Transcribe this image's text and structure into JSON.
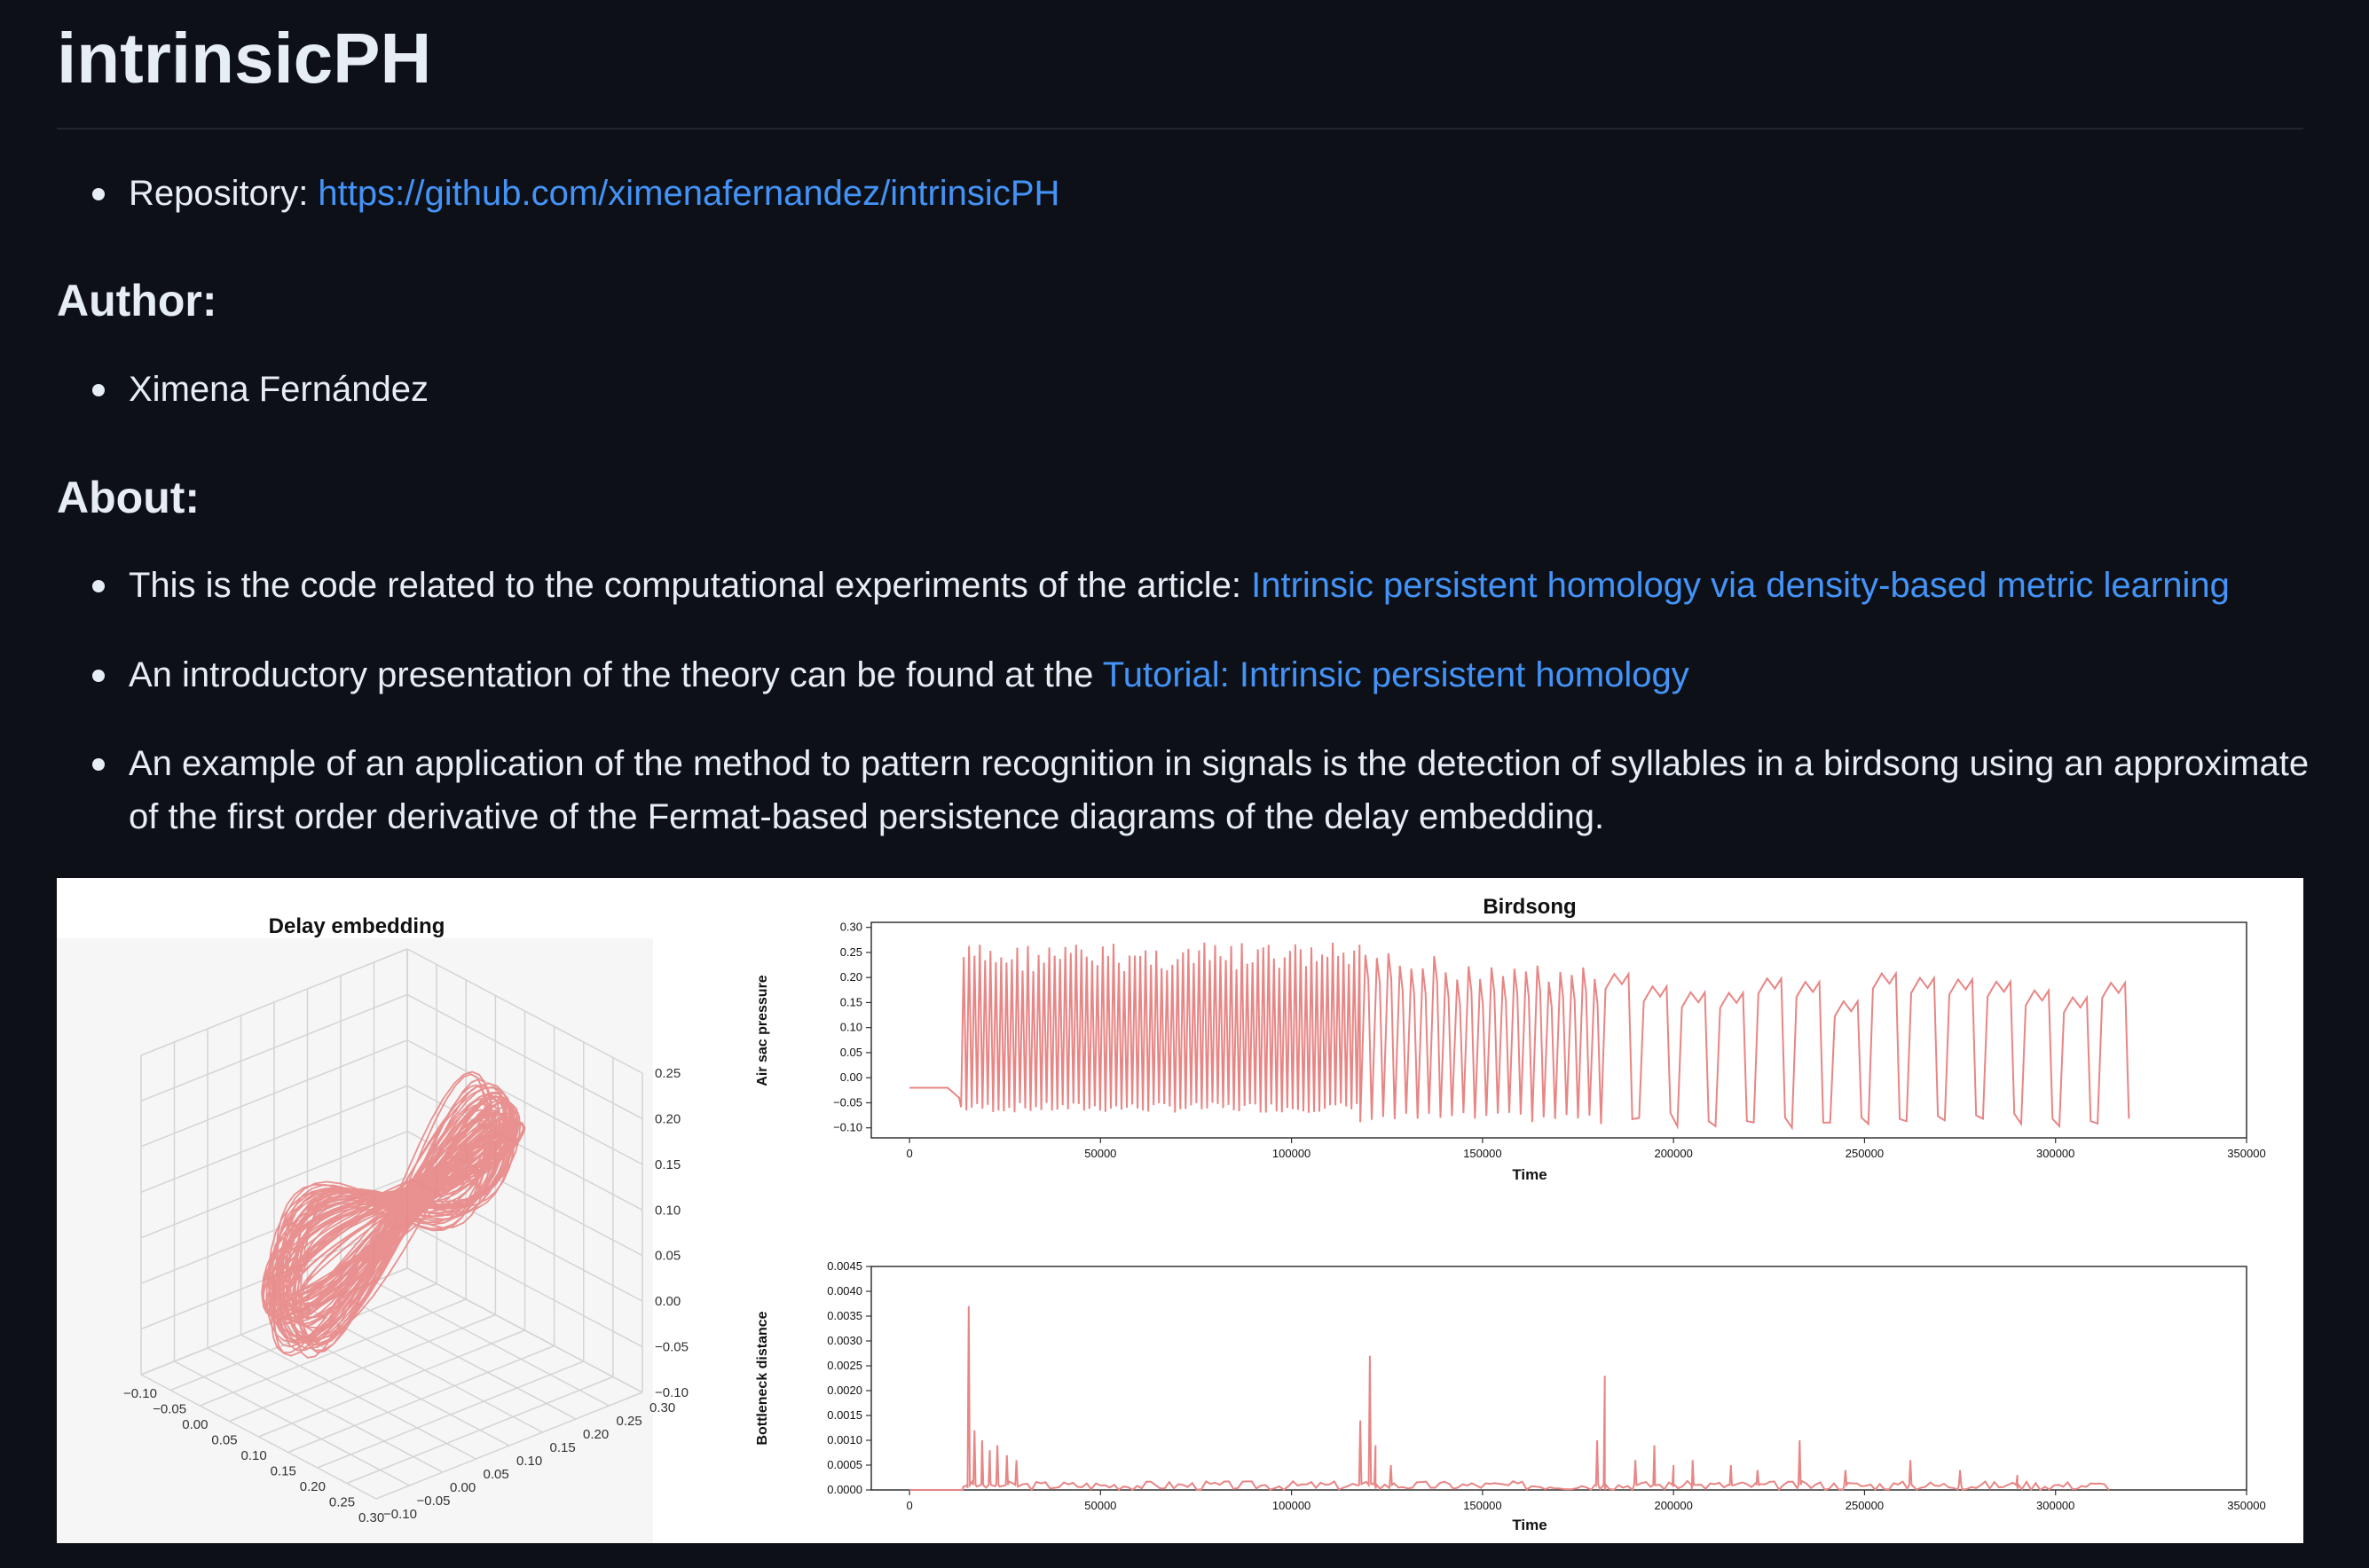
{
  "title": "intrinsicPH",
  "repository": {
    "label": "Repository: ",
    "link": "https://github.com/ximenafernandez/intrinsicPH"
  },
  "author": {
    "heading": "Author:",
    "name": "Ximena Fernández"
  },
  "about": {
    "heading": "About:",
    "item1_text": "This is the code related to the computational experiments of the article: ",
    "item1_link": "Intrinsic persistent homology via density-based metric learning",
    "item2_text": "An introductory presentation of the theory can be found at the ",
    "item2_link": "Tutorial: Intrinsic persistent homology",
    "item3_line1": "An example of an application of the method to pattern recognition in signals is the detection of syllables in a birdsong using an approximate",
    "item3_line2": "of the first order derivative of the Fermat-based persistence diagrams of the delay embedding."
  },
  "colors": {
    "background": "#0d1117",
    "text": "#e6edf3",
    "link": "#4493f8",
    "series": "#e88585"
  },
  "chart_data": [
    {
      "type": "line3d",
      "title": "Delay embedding",
      "axes": {
        "x_ticks": [
          "−0.10",
          "−0.05",
          "0.00",
          "0.05",
          "0.10",
          "0.15",
          "0.20",
          "0.25",
          "0.30"
        ],
        "y_ticks": [
          "−0.10",
          "−0.05",
          "0.00",
          "0.05",
          "0.10",
          "0.15",
          "0.20",
          "0.25",
          "0.30"
        ],
        "z_ticks": [
          "−0.10",
          "−0.05",
          "0.00",
          "0.05",
          "0.10",
          "0.15",
          "0.20",
          "0.25"
        ]
      }
    },
    {
      "type": "line",
      "title": "Birdsong",
      "xlabel": "Time",
      "ylabel": "Air sac pressure",
      "xlim": [
        -10000,
        350000
      ],
      "ylim": [
        -0.12,
        0.31
      ],
      "x_ticks": [
        0,
        50000,
        100000,
        150000,
        200000,
        250000,
        300000,
        350000
      ],
      "y_ticks": [
        "0.30",
        "0.25",
        "0.20",
        "0.15",
        "0.10",
        "0.05",
        "0.00",
        "−0.05",
        "−0.10"
      ],
      "y_tick_values": [
        0.3,
        0.25,
        0.2,
        0.15,
        0.1,
        0.05,
        0.0,
        -0.05,
        -0.1
      ],
      "segments": [
        {
          "x_start": 0,
          "x_end": 13000,
          "kind": "flat",
          "level": -0.02
        },
        {
          "x_start": 13500,
          "x_end": 118000,
          "kind": "fast",
          "period": 1400,
          "low": -0.07,
          "high": 0.27
        },
        {
          "x_start": 118000,
          "x_end": 181000,
          "kind": "medium",
          "period": 3000,
          "low": -0.09,
          "high": 0.25
        },
        {
          "x_start": 181000,
          "x_end": 314000,
          "kind": "slow",
          "period": 10000,
          "low": -0.1,
          "high": 0.21
        }
      ]
    },
    {
      "type": "line",
      "xlabel": "Time",
      "ylabel": "Bottleneck distance",
      "xlim": [
        -10000,
        350000
      ],
      "ylim": [
        0,
        0.0045
      ],
      "x_ticks": [
        0,
        50000,
        100000,
        150000,
        200000,
        250000,
        300000,
        350000
      ],
      "y_ticks": [
        "0.0045",
        "0.0040",
        "0.0035",
        "0.0030",
        "0.0025",
        "0.0020",
        "0.0015",
        "0.0010",
        "0.0005",
        "0.0000"
      ],
      "y_tick_values": [
        0.0045,
        0.004,
        0.0035,
        0.003,
        0.0025,
        0.002,
        0.0015,
        0.001,
        0.0005,
        0.0
      ],
      "peaks": [
        {
          "x": 15500,
          "y": 0.0037
        },
        {
          "x": 17000,
          "y": 0.0012
        },
        {
          "x": 19000,
          "y": 0.001
        },
        {
          "x": 21000,
          "y": 0.0008
        },
        {
          "x": 23000,
          "y": 0.0009
        },
        {
          "x": 25500,
          "y": 0.0007
        },
        {
          "x": 28000,
          "y": 0.0006
        },
        {
          "x": 118000,
          "y": 0.0014
        },
        {
          "x": 120500,
          "y": 0.0027
        },
        {
          "x": 122000,
          "y": 0.0009
        },
        {
          "x": 126000,
          "y": 0.0005
        },
        {
          "x": 180000,
          "y": 0.001
        },
        {
          "x": 182000,
          "y": 0.0023
        },
        {
          "x": 190000,
          "y": 0.0006
        },
        {
          "x": 195000,
          "y": 0.0009
        },
        {
          "x": 200000,
          "y": 0.0005
        },
        {
          "x": 205000,
          "y": 0.0006
        },
        {
          "x": 215000,
          "y": 0.0005
        },
        {
          "x": 222000,
          "y": 0.0004
        },
        {
          "x": 233000,
          "y": 0.001
        },
        {
          "x": 245000,
          "y": 0.0004
        },
        {
          "x": 262000,
          "y": 0.0006
        },
        {
          "x": 275000,
          "y": 0.0004
        },
        {
          "x": 290000,
          "y": 0.0003
        }
      ]
    }
  ]
}
